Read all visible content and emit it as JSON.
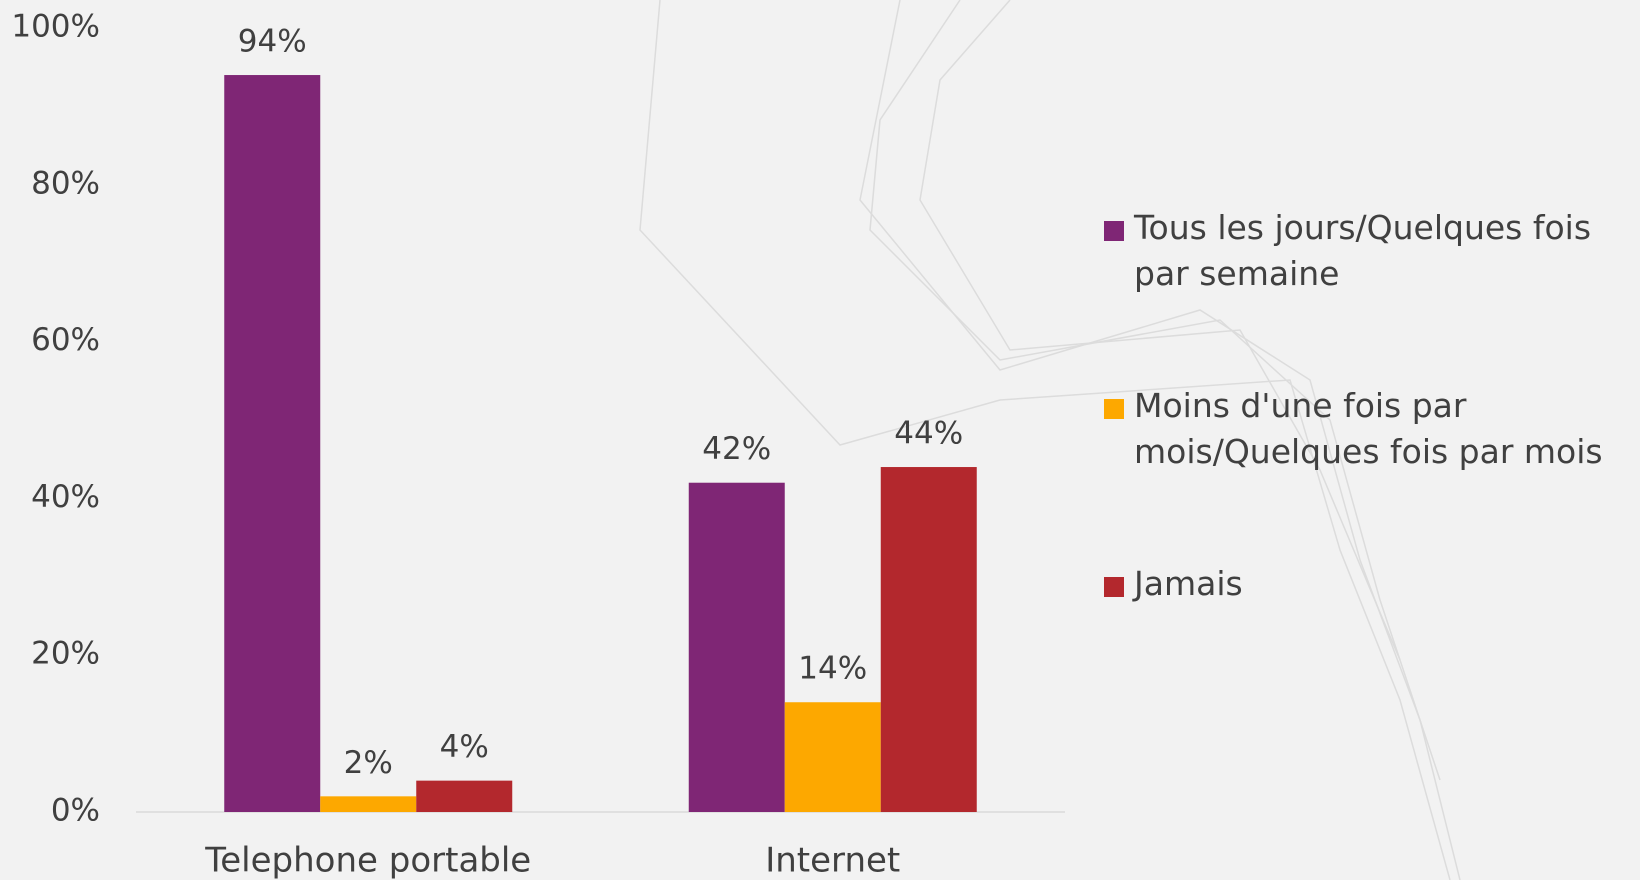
{
  "chart_data": {
    "type": "bar",
    "categories": [
      "Telephone portable",
      "Internet"
    ],
    "series": [
      {
        "name": "Tous les jours/Quelques fois par semaine",
        "color": "#7f2675",
        "values": [
          94,
          42
        ],
        "value_labels": [
          "94%",
          "42%"
        ]
      },
      {
        "name": "Moins d'une fois par mois/Quelques fois par mois",
        "color": "#fda800",
        "values": [
          2,
          14
        ],
        "value_labels": [
          "2%",
          "14%"
        ]
      },
      {
        "name": "Jamais",
        "color": "#b3282d",
        "values": [
          4,
          44
        ],
        "value_labels": [
          "4%",
          "44%"
        ]
      }
    ],
    "ylim": [
      0,
      100
    ],
    "yticks": [
      {
        "value": 0,
        "label": "0%"
      },
      {
        "value": 20,
        "label": "20%"
      },
      {
        "value": 40,
        "label": "40%"
      },
      {
        "value": 60,
        "label": "60%"
      },
      {
        "value": 80,
        "label": "80%"
      },
      {
        "value": 100,
        "label": "100%"
      }
    ],
    "grid": false,
    "legend": "right"
  }
}
